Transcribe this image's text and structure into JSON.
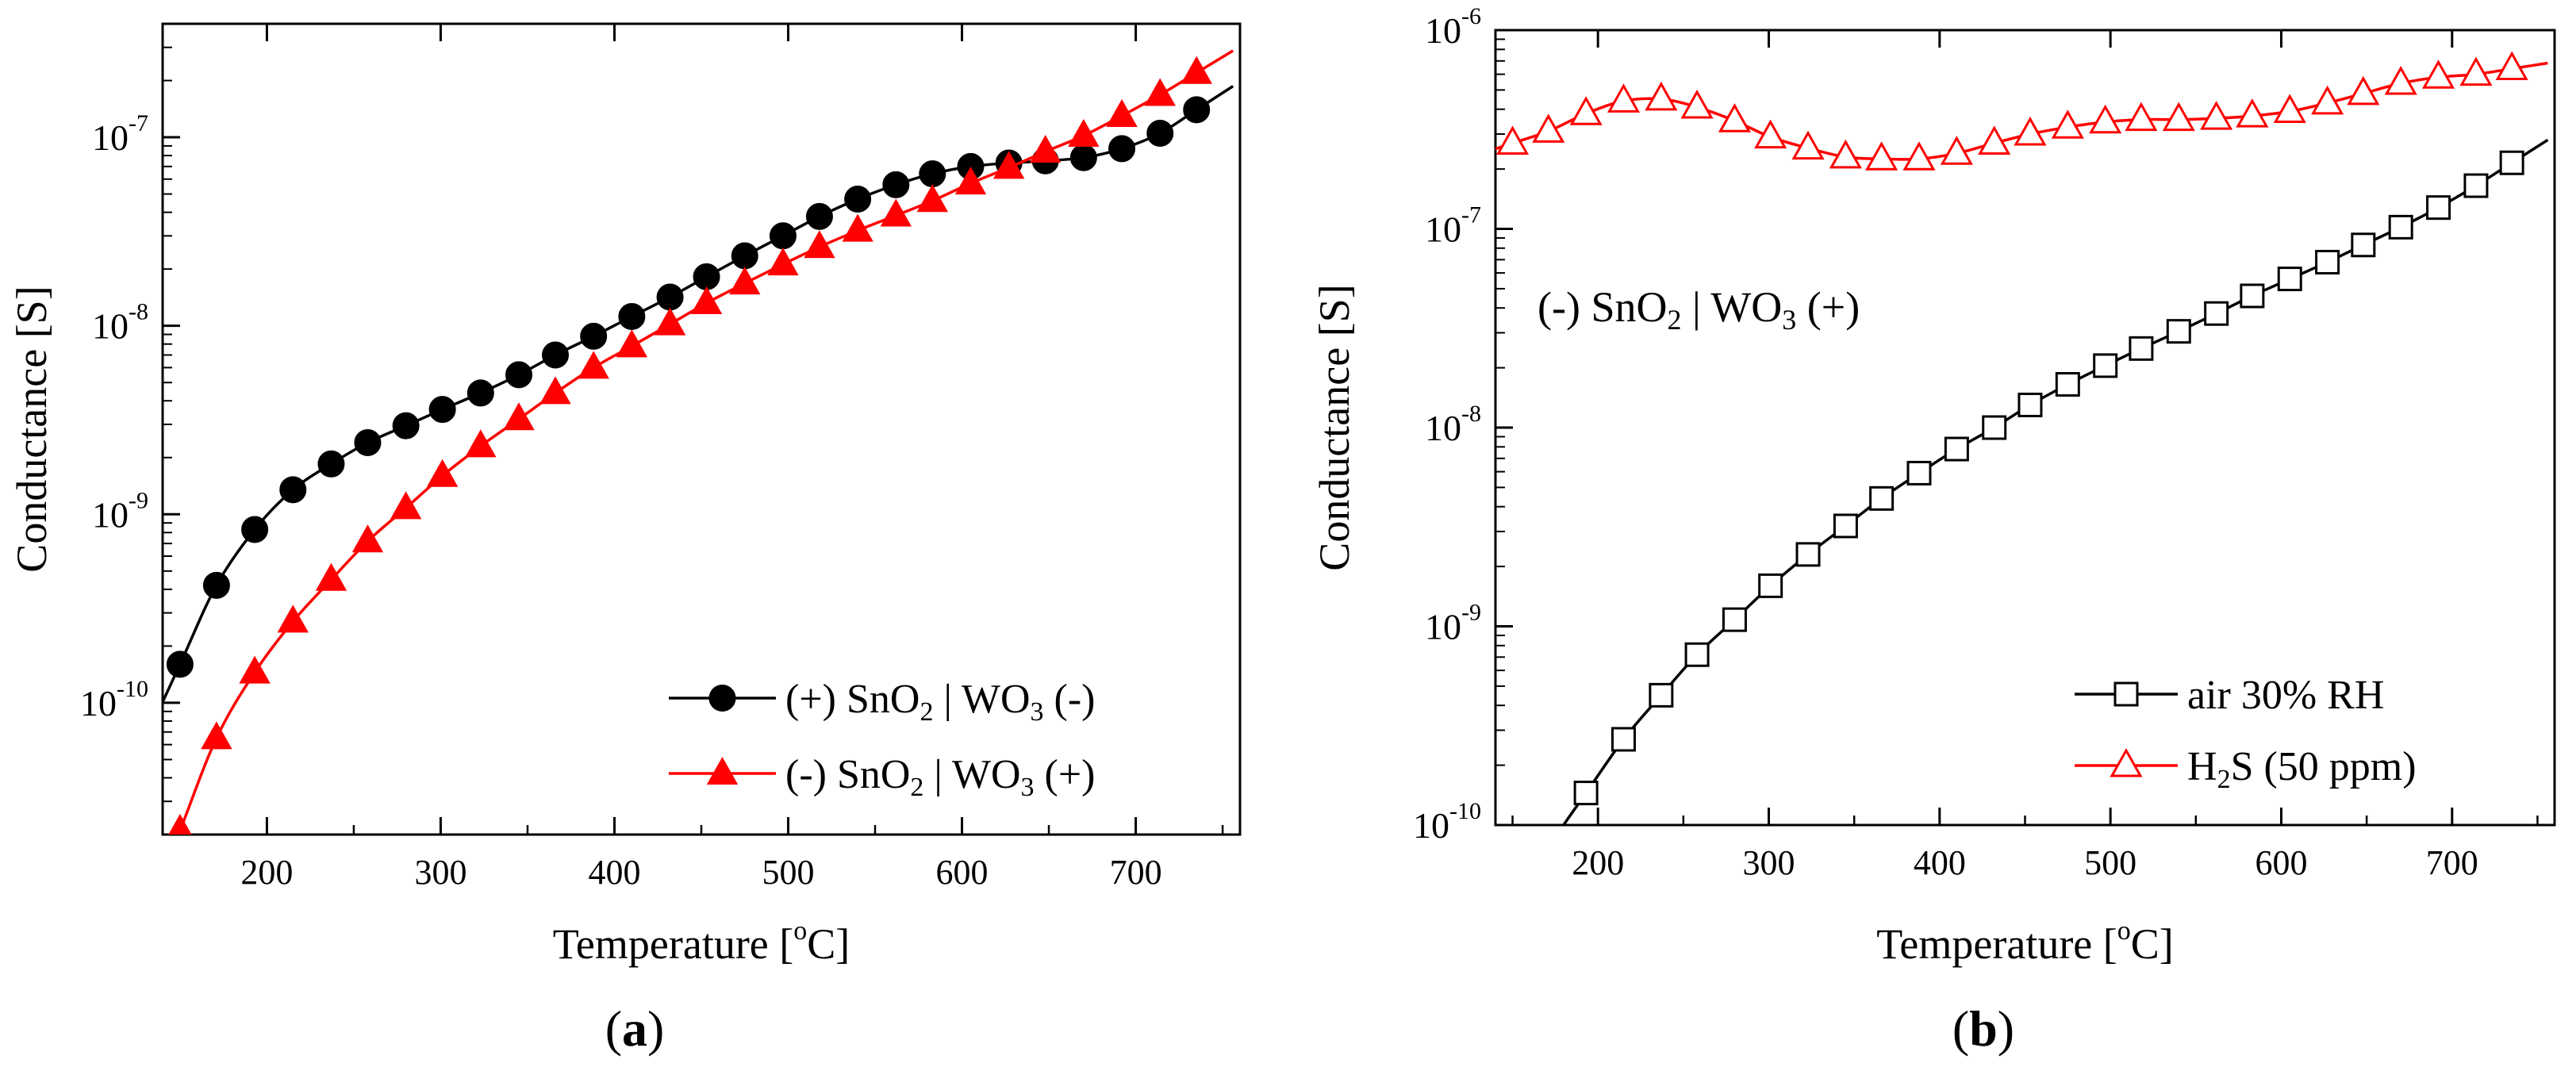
{
  "chart_data": [
    {
      "panel": "a",
      "type": "line",
      "title": "",
      "panel_label": "(a)",
      "panel_label_text": "a",
      "xlabel": "Temperature [°C]",
      "xlabel_main": "Temperature [",
      "xlabel_sup": "o",
      "xlabel_end": "C]",
      "ylabel": "Conductance [S]",
      "yscale": "log",
      "xlim": [
        140,
        760
      ],
      "ylim": [
        2e-11,
        4e-07
      ],
      "x_ticks": [
        200,
        300,
        400,
        500,
        600,
        700
      ],
      "x_tick_labels": [
        "200",
        "300",
        "400",
        "500",
        "600",
        "700"
      ],
      "y_ticks": [
        1e-10,
        1e-09,
        1e-08,
        1e-07
      ],
      "y_tick_labels": [
        {
          "base": "10",
          "exp": "-10"
        },
        {
          "base": "10",
          "exp": "-9"
        },
        {
          "base": "10",
          "exp": "-8"
        },
        {
          "base": "10",
          "exp": "-7"
        }
      ],
      "grid": false,
      "legend_position": "bottom-right",
      "series": [
        {
          "name": "(+) SnO2 | WO3 (-)",
          "legend": {
            "pre": "(+) SnO",
            "sub1": "2",
            "mid": " | WO",
            "sub2": "3",
            "post": " (-)"
          },
          "color": "#000000",
          "marker": "filled-circle",
          "x": [
            150,
            171,
            193,
            215,
            237,
            258,
            280,
            301,
            323,
            345,
            366,
            388,
            410,
            432,
            453,
            475,
            497,
            518,
            540,
            562,
            583,
            605,
            627,
            648,
            670,
            692,
            714,
            735
          ],
          "y": [
            1.6e-10,
            4.2e-10,
            8.3e-10,
            1.35e-09,
            1.85e-09,
            2.4e-09,
            2.95e-09,
            3.6e-09,
            4.4e-09,
            5.5e-09,
            7e-09,
            8.8e-09,
            1.12e-08,
            1.42e-08,
            1.82e-08,
            2.35e-08,
            3e-08,
            3.8e-08,
            4.7e-08,
            5.6e-08,
            6.4e-08,
            7e-08,
            7.3e-08,
            7.5e-08,
            7.8e-08,
            8.7e-08,
            1.05e-07,
            1.4e-07
          ]
        },
        {
          "name": "(-) SnO2 | WO3 (+)",
          "legend": {
            "pre": "(-)  SnO",
            "sub1": "2",
            "mid": " | WO",
            "sub2": "3",
            "post": " (+)"
          },
          "color": "#ff0000",
          "marker": "filled-triangle",
          "x": [
            150,
            171,
            193,
            215,
            237,
            258,
            280,
            301,
            323,
            345,
            366,
            388,
            410,
            432,
            453,
            475,
            497,
            518,
            540,
            562,
            583,
            605,
            627,
            648,
            670,
            692,
            714,
            735
          ],
          "y": [
            2.1e-11,
            6.5e-11,
            1.45e-10,
            2.7e-10,
            4.5e-10,
            7.2e-10,
            1.08e-09,
            1.6e-09,
            2.3e-09,
            3.2e-09,
            4.4e-09,
            6e-09,
            7.8e-09,
            1.02e-08,
            1.32e-08,
            1.68e-08,
            2.12e-08,
            2.62e-08,
            3.2e-08,
            3.85e-08,
            4.6e-08,
            5.7e-08,
            6.9e-08,
            8.4e-08,
            1.02e-07,
            1.3e-07,
            1.68e-07,
            2.2e-07
          ]
        }
      ]
    },
    {
      "panel": "b",
      "type": "line",
      "title": "",
      "panel_label": "(b)",
      "panel_label_text": "b",
      "xlabel": "Temperature [°C]",
      "xlabel_main": "Temperature [",
      "xlabel_sup": "o",
      "xlabel_end": "C]",
      "ylabel": "Conductance [S]",
      "yscale": "log",
      "xlim": [
        140,
        760
      ],
      "ylim": [
        1e-10,
        1e-06
      ],
      "x_ticks": [
        200,
        300,
        400,
        500,
        600,
        700
      ],
      "x_tick_labels": [
        "200",
        "300",
        "400",
        "500",
        "600",
        "700"
      ],
      "y_ticks": [
        1e-10,
        1e-09,
        1e-08,
        1e-07,
        1e-06
      ],
      "y_tick_labels": [
        {
          "base": "10",
          "exp": "-10"
        },
        {
          "base": "10",
          "exp": "-9"
        },
        {
          "base": "10",
          "exp": "-8"
        },
        {
          "base": "10",
          "exp": "-7"
        },
        {
          "base": "10",
          "exp": "-6"
        }
      ],
      "grid": false,
      "legend_position": "bottom-right",
      "annotation": {
        "pre": "(-) SnO",
        "sub1": "2",
        "mid": " | WO",
        "sub2": "3",
        "post": " (+)"
      },
      "series": [
        {
          "name": "air 30% RH",
          "legend": {
            "pre": "air 30% RH",
            "sub1": "",
            "mid": "",
            "sub2": "",
            "post": ""
          },
          "color": "#000000",
          "marker": "open-square",
          "x": [
            193,
            215,
            237,
            258,
            280,
            301,
            323,
            345,
            366,
            388,
            410,
            432,
            453,
            475,
            497,
            518,
            540,
            562,
            583,
            605,
            627,
            648,
            670,
            692,
            714,
            735
          ],
          "y": [
            1.45e-10,
            2.7e-10,
            4.5e-10,
            7.2e-10,
            1.08e-09,
            1.6e-09,
            2.3e-09,
            3.2e-09,
            4.4e-09,
            5.9e-09,
            7.8e-09,
            1e-08,
            1.3e-08,
            1.65e-08,
            2.05e-08,
            2.5e-08,
            3.05e-08,
            3.75e-08,
            4.6e-08,
            5.6e-08,
            6.8e-08,
            8.3e-08,
            1.02e-07,
            1.28e-07,
            1.65e-07,
            2.15e-07
          ]
        },
        {
          "name": "H2S (50 ppm)",
          "legend": {
            "pre": "H",
            "sub1": "2",
            "mid": "S (50 ppm)",
            "sub2": "",
            "post": ""
          },
          "color": "#ff0000",
          "marker": "open-triangle",
          "x": [
            150,
            171,
            193,
            215,
            237,
            258,
            280,
            301,
            323,
            345,
            366,
            388,
            410,
            432,
            453,
            475,
            497,
            518,
            540,
            562,
            583,
            605,
            627,
            648,
            670,
            692,
            714,
            735
          ],
          "y": [
            2.7e-07,
            3.1e-07,
            3.8e-07,
            4.4e-07,
            4.5e-07,
            4.1e-07,
            3.5e-07,
            2.9e-07,
            2.55e-07,
            2.3e-07,
            2.25e-07,
            2.25e-07,
            2.4e-07,
            2.7e-07,
            3e-07,
            3.25e-07,
            3.45e-07,
            3.55e-07,
            3.55e-07,
            3.6e-07,
            3.7e-07,
            3.9e-07,
            4.3e-07,
            4.8e-07,
            5.4e-07,
            5.8e-07,
            6e-07,
            6.4e-07
          ]
        }
      ]
    }
  ]
}
